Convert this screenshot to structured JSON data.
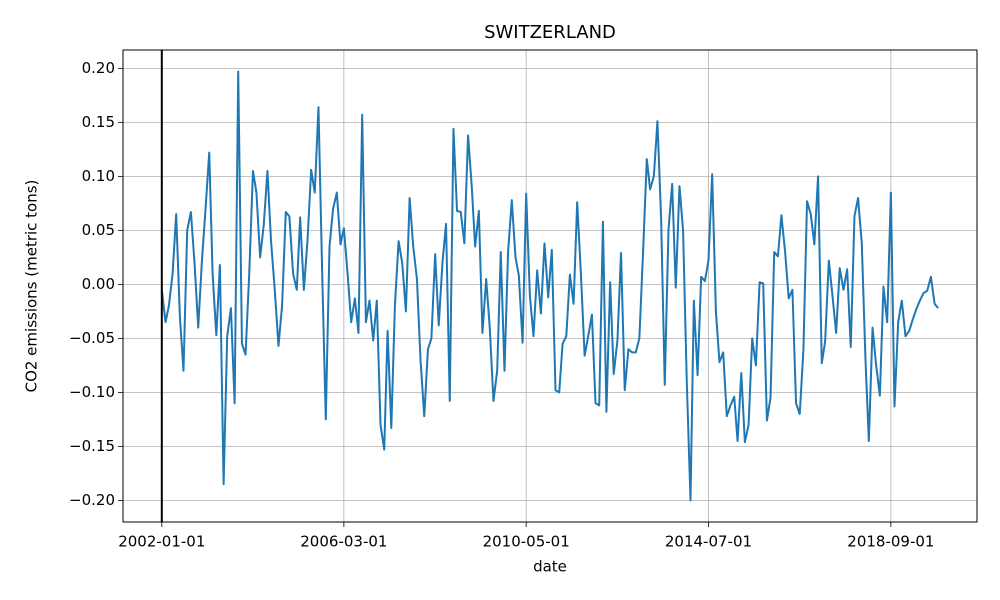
{
  "chart_data": {
    "type": "line",
    "title": "SWITZERLAND",
    "x_label": "date",
    "y_label": "CO2 emissions (metric tons)",
    "color": "#1f77b4",
    "vline_x": "2002-01-01",
    "vline_color": "#000000",
    "grid": true,
    "x": [
      "2002-01-01",
      "2002-02-01",
      "2002-03-01",
      "2002-04-01",
      "2002-05-01",
      "2002-06-01",
      "2002-07-01",
      "2002-08-01",
      "2002-09-01",
      "2002-10-01",
      "2002-11-01",
      "2002-12-01",
      "2003-01-01",
      "2003-02-01",
      "2003-03-01",
      "2003-04-01",
      "2003-05-01",
      "2003-06-01",
      "2003-07-01",
      "2003-08-01",
      "2003-09-01",
      "2003-10-01",
      "2003-11-01",
      "2003-12-01",
      "2004-01-01",
      "2004-02-01",
      "2004-03-01",
      "2004-04-01",
      "2004-05-01",
      "2004-06-01",
      "2004-07-01",
      "2004-08-01",
      "2004-09-01",
      "2004-10-01",
      "2004-11-01",
      "2004-12-01",
      "2005-01-01",
      "2005-02-01",
      "2005-03-01",
      "2005-04-01",
      "2005-05-01",
      "2005-06-01",
      "2005-07-01",
      "2005-08-01",
      "2005-09-01",
      "2005-10-01",
      "2005-11-01",
      "2005-12-01",
      "2006-01-01",
      "2006-02-01",
      "2006-03-01",
      "2006-04-01",
      "2006-05-01",
      "2006-06-01",
      "2006-07-01",
      "2006-08-01",
      "2006-09-01",
      "2006-10-01",
      "2006-11-01",
      "2006-12-01",
      "2007-01-01",
      "2007-02-01",
      "2007-03-01",
      "2007-04-01",
      "2007-05-01",
      "2007-06-01",
      "2007-07-01",
      "2007-08-01",
      "2007-09-01",
      "2007-10-01",
      "2007-11-01",
      "2007-12-01",
      "2008-01-01",
      "2008-02-01",
      "2008-03-01",
      "2008-04-01",
      "2008-05-01",
      "2008-06-01",
      "2008-07-01",
      "2008-08-01",
      "2008-09-01",
      "2008-10-01",
      "2008-11-01",
      "2008-12-01",
      "2009-01-01",
      "2009-02-01",
      "2009-03-01",
      "2009-04-01",
      "2009-05-01",
      "2009-06-01",
      "2009-07-01",
      "2009-08-01",
      "2009-09-01",
      "2009-10-01",
      "2009-11-01",
      "2009-12-01",
      "2010-01-01",
      "2010-02-01",
      "2010-03-01",
      "2010-04-01",
      "2010-05-01",
      "2010-06-01",
      "2010-07-01",
      "2010-08-01",
      "2010-09-01",
      "2010-10-01",
      "2010-11-01",
      "2010-12-01",
      "2011-01-01",
      "2011-02-01",
      "2011-03-01",
      "2011-04-01",
      "2011-05-01",
      "2011-06-01",
      "2011-07-01",
      "2011-08-01",
      "2011-09-01",
      "2011-10-01",
      "2011-11-01",
      "2011-12-01",
      "2012-01-01",
      "2012-02-01",
      "2012-03-01",
      "2012-04-01",
      "2012-05-01",
      "2012-06-01",
      "2012-07-01",
      "2012-08-01",
      "2012-09-01",
      "2012-10-01",
      "2012-11-01",
      "2012-12-01",
      "2013-01-01",
      "2013-02-01",
      "2013-03-01",
      "2013-04-01",
      "2013-05-01",
      "2013-06-01",
      "2013-07-01",
      "2013-08-01",
      "2013-09-01",
      "2013-10-01",
      "2013-11-01",
      "2013-12-01",
      "2014-01-01",
      "2014-02-01",
      "2014-03-01",
      "2014-04-01",
      "2014-05-01",
      "2014-06-01",
      "2014-07-01",
      "2014-08-01",
      "2014-09-01",
      "2014-10-01",
      "2014-11-01",
      "2014-12-01",
      "2015-01-01",
      "2015-02-01",
      "2015-03-01",
      "2015-04-01",
      "2015-05-01",
      "2015-06-01",
      "2015-07-01",
      "2015-08-01",
      "2015-09-01",
      "2015-10-01",
      "2015-11-01",
      "2015-12-01",
      "2016-01-01",
      "2016-02-01",
      "2016-03-01",
      "2016-04-01",
      "2016-05-01",
      "2016-06-01",
      "2016-07-01",
      "2016-08-01",
      "2016-09-01",
      "2016-10-01",
      "2016-11-01",
      "2016-12-01",
      "2017-01-01",
      "2017-02-01",
      "2017-03-01",
      "2017-04-01",
      "2017-05-01",
      "2017-06-01",
      "2017-07-01",
      "2017-08-01",
      "2017-09-01",
      "2017-10-01",
      "2017-11-01",
      "2017-12-01",
      "2018-01-01",
      "2018-02-01",
      "2018-03-01",
      "2018-04-01",
      "2018-05-01",
      "2018-06-01",
      "2018-07-01",
      "2018-08-01",
      "2018-09-01",
      "2018-10-01",
      "2018-11-01",
      "2018-12-01",
      "2019-01-01",
      "2019-02-01",
      "2019-03-01",
      "2019-04-01",
      "2019-05-01",
      "2019-06-01",
      "2019-07-01",
      "2019-08-01",
      "2019-09-01",
      "2019-10-01"
    ],
    "values": [
      -0.005,
      -0.035,
      -0.02,
      0.01,
      0.065,
      -0.03,
      -0.08,
      0.05,
      0.067,
      0.02,
      -0.04,
      0.02,
      0.07,
      0.122,
      0.01,
      -0.047,
      0.018,
      -0.185,
      -0.048,
      -0.022,
      -0.11,
      0.197,
      -0.055,
      -0.065,
      0.01,
      0.105,
      0.085,
      0.025,
      0.055,
      0.105,
      0.04,
      -0.005,
      -0.057,
      -0.02,
      0.067,
      0.063,
      0.01,
      -0.005,
      0.062,
      -0.005,
      0.04,
      0.106,
      0.085,
      0.164,
      0.01,
      -0.125,
      0.035,
      0.07,
      0.085,
      0.037,
      0.052,
      0.01,
      -0.035,
      -0.013,
      -0.045,
      0.157,
      -0.035,
      -0.015,
      -0.052,
      -0.015,
      -0.13,
      -0.153,
      -0.043,
      -0.133,
      -0.02,
      0.04,
      0.02,
      -0.025,
      0.08,
      0.035,
      0.005,
      -0.07,
      -0.122,
      -0.06,
      -0.05,
      0.028,
      -0.038,
      0.02,
      0.056,
      -0.108,
      0.144,
      0.068,
      0.067,
      0.038,
      0.138,
      0.09,
      0.035,
      0.068,
      -0.045,
      0.005,
      -0.04,
      -0.108,
      -0.08,
      0.03,
      -0.08,
      0.03,
      0.078,
      0.025,
      0.008,
      -0.054,
      0.084,
      -0.01,
      -0.048,
      0.013,
      -0.027,
      0.038,
      -0.012,
      0.032,
      -0.098,
      -0.1,
      -0.055,
      -0.048,
      0.009,
      -0.018,
      0.076,
      0.01,
      -0.066,
      -0.048,
      -0.028,
      -0.11,
      -0.112,
      0.058,
      -0.118,
      0.002,
      -0.083,
      -0.052,
      0.029,
      -0.098,
      -0.06,
      -0.063,
      -0.063,
      -0.05,
      0.03,
      0.116,
      0.088,
      0.1,
      0.151,
      0.06,
      -0.093,
      0.05,
      0.093,
      -0.003,
      0.091,
      0.05,
      -0.09,
      -0.2,
      -0.015,
      -0.084,
      0.007,
      0.003,
      0.022,
      0.102,
      -0.025,
      -0.072,
      -0.063,
      -0.122,
      -0.112,
      -0.104,
      -0.145,
      -0.082,
      -0.146,
      -0.13,
      -0.05,
      -0.075,
      0.002,
      0.001,
      -0.126,
      -0.105,
      0.03,
      0.026,
      0.064,
      0.03,
      -0.013,
      -0.005,
      -0.11,
      -0.12,
      -0.06,
      0.077,
      0.065,
      0.037,
      0.1,
      -0.073,
      -0.053,
      0.022,
      -0.01,
      -0.045,
      0.015,
      -0.005,
      0.014,
      -0.058,
      0.063,
      0.08,
      0.038,
      -0.07,
      -0.145,
      -0.04,
      -0.075,
      -0.103,
      -0.002,
      -0.035,
      0.085,
      -0.113,
      -0.035,
      -0.015,
      -0.048,
      -0.043,
      -0.033,
      -0.023,
      -0.015,
      -0.008,
      -0.006,
      0.007,
      -0.018,
      -0.022
    ],
    "xlim": [
      "2001-02-11",
      "2020-08-20"
    ],
    "xticks": [
      "2002-01-01",
      "2006-03-01",
      "2010-05-01",
      "2014-07-01",
      "2018-09-01"
    ],
    "ylim": [
      -0.22,
      0.217
    ],
    "yticks": [
      {
        "value": -0.2,
        "label": "−0.20"
      },
      {
        "value": -0.15,
        "label": "−0.15"
      },
      {
        "value": -0.1,
        "label": "−0.10"
      },
      {
        "value": -0.05,
        "label": "−0.05"
      },
      {
        "value": 0,
        "label": "0.00"
      },
      0.05,
      {
        "value": 0.1,
        "label": "0.10"
      },
      0.15,
      {
        "value": 0.2,
        "label": "0.20"
      }
    ]
  }
}
